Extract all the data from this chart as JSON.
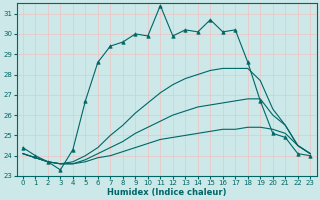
{
  "xlabel": "Humidex (Indice chaleur)",
  "ylabel": "",
  "xlim": [
    -0.5,
    23.5
  ],
  "ylim": [
    23,
    31.5
  ],
  "yticks": [
    23,
    24,
    25,
    26,
    27,
    28,
    29,
    30,
    31
  ],
  "xticks": [
    0,
    1,
    2,
    3,
    4,
    5,
    6,
    7,
    8,
    9,
    10,
    11,
    12,
    13,
    14,
    15,
    16,
    17,
    18,
    19,
    20,
    21,
    22,
    23
  ],
  "bg_color": "#cce8e8",
  "grid_color": "#e8c8c8",
  "line_color": "#006666",
  "lines": [
    {
      "x": [
        0,
        1,
        2,
        3,
        4,
        5,
        6,
        7,
        8,
        9,
        10,
        11,
        12,
        13,
        14,
        15,
        16,
        17,
        18,
        19,
        20,
        21,
        22,
        23
      ],
      "y": [
        24.4,
        24.0,
        23.7,
        23.3,
        24.3,
        26.7,
        28.6,
        29.4,
        29.6,
        30.0,
        29.9,
        31.4,
        29.9,
        30.2,
        30.1,
        30.7,
        30.1,
        30.2,
        28.6,
        26.7,
        25.1,
        24.9,
        24.1,
        24.0
      ],
      "has_markers": true
    },
    {
      "x": [
        0,
        1,
        2,
        3,
        4,
        5,
        6,
        7,
        8,
        9,
        10,
        11,
        12,
        13,
        14,
        15,
        16,
        17,
        18,
        19,
        20,
        21,
        22,
        23
      ],
      "y": [
        24.1,
        23.9,
        23.7,
        23.6,
        23.6,
        23.7,
        23.9,
        24.0,
        24.2,
        24.4,
        24.6,
        24.8,
        24.9,
        25.0,
        25.1,
        25.2,
        25.3,
        25.3,
        25.4,
        25.4,
        25.3,
        25.1,
        24.5,
        24.1
      ],
      "has_markers": false
    },
    {
      "x": [
        0,
        1,
        2,
        3,
        4,
        5,
        6,
        7,
        8,
        9,
        10,
        11,
        12,
        13,
        14,
        15,
        16,
        17,
        18,
        19,
        20,
        21,
        22,
        23
      ],
      "y": [
        24.1,
        23.9,
        23.7,
        23.6,
        23.6,
        23.8,
        24.1,
        24.4,
        24.7,
        25.1,
        25.4,
        25.7,
        26.0,
        26.2,
        26.4,
        26.5,
        26.6,
        26.7,
        26.8,
        26.8,
        26.0,
        25.5,
        24.5,
        24.1
      ],
      "has_markers": false
    },
    {
      "x": [
        0,
        1,
        2,
        3,
        4,
        5,
        6,
        7,
        8,
        9,
        10,
        11,
        12,
        13,
        14,
        15,
        16,
        17,
        18,
        19,
        20,
        21,
        22,
        23
      ],
      "y": [
        24.1,
        23.9,
        23.7,
        23.6,
        23.7,
        24.0,
        24.4,
        25.0,
        25.5,
        26.1,
        26.6,
        27.1,
        27.5,
        27.8,
        28.0,
        28.2,
        28.3,
        28.3,
        28.3,
        27.7,
        26.3,
        25.5,
        24.5,
        24.1
      ],
      "has_markers": false
    }
  ]
}
